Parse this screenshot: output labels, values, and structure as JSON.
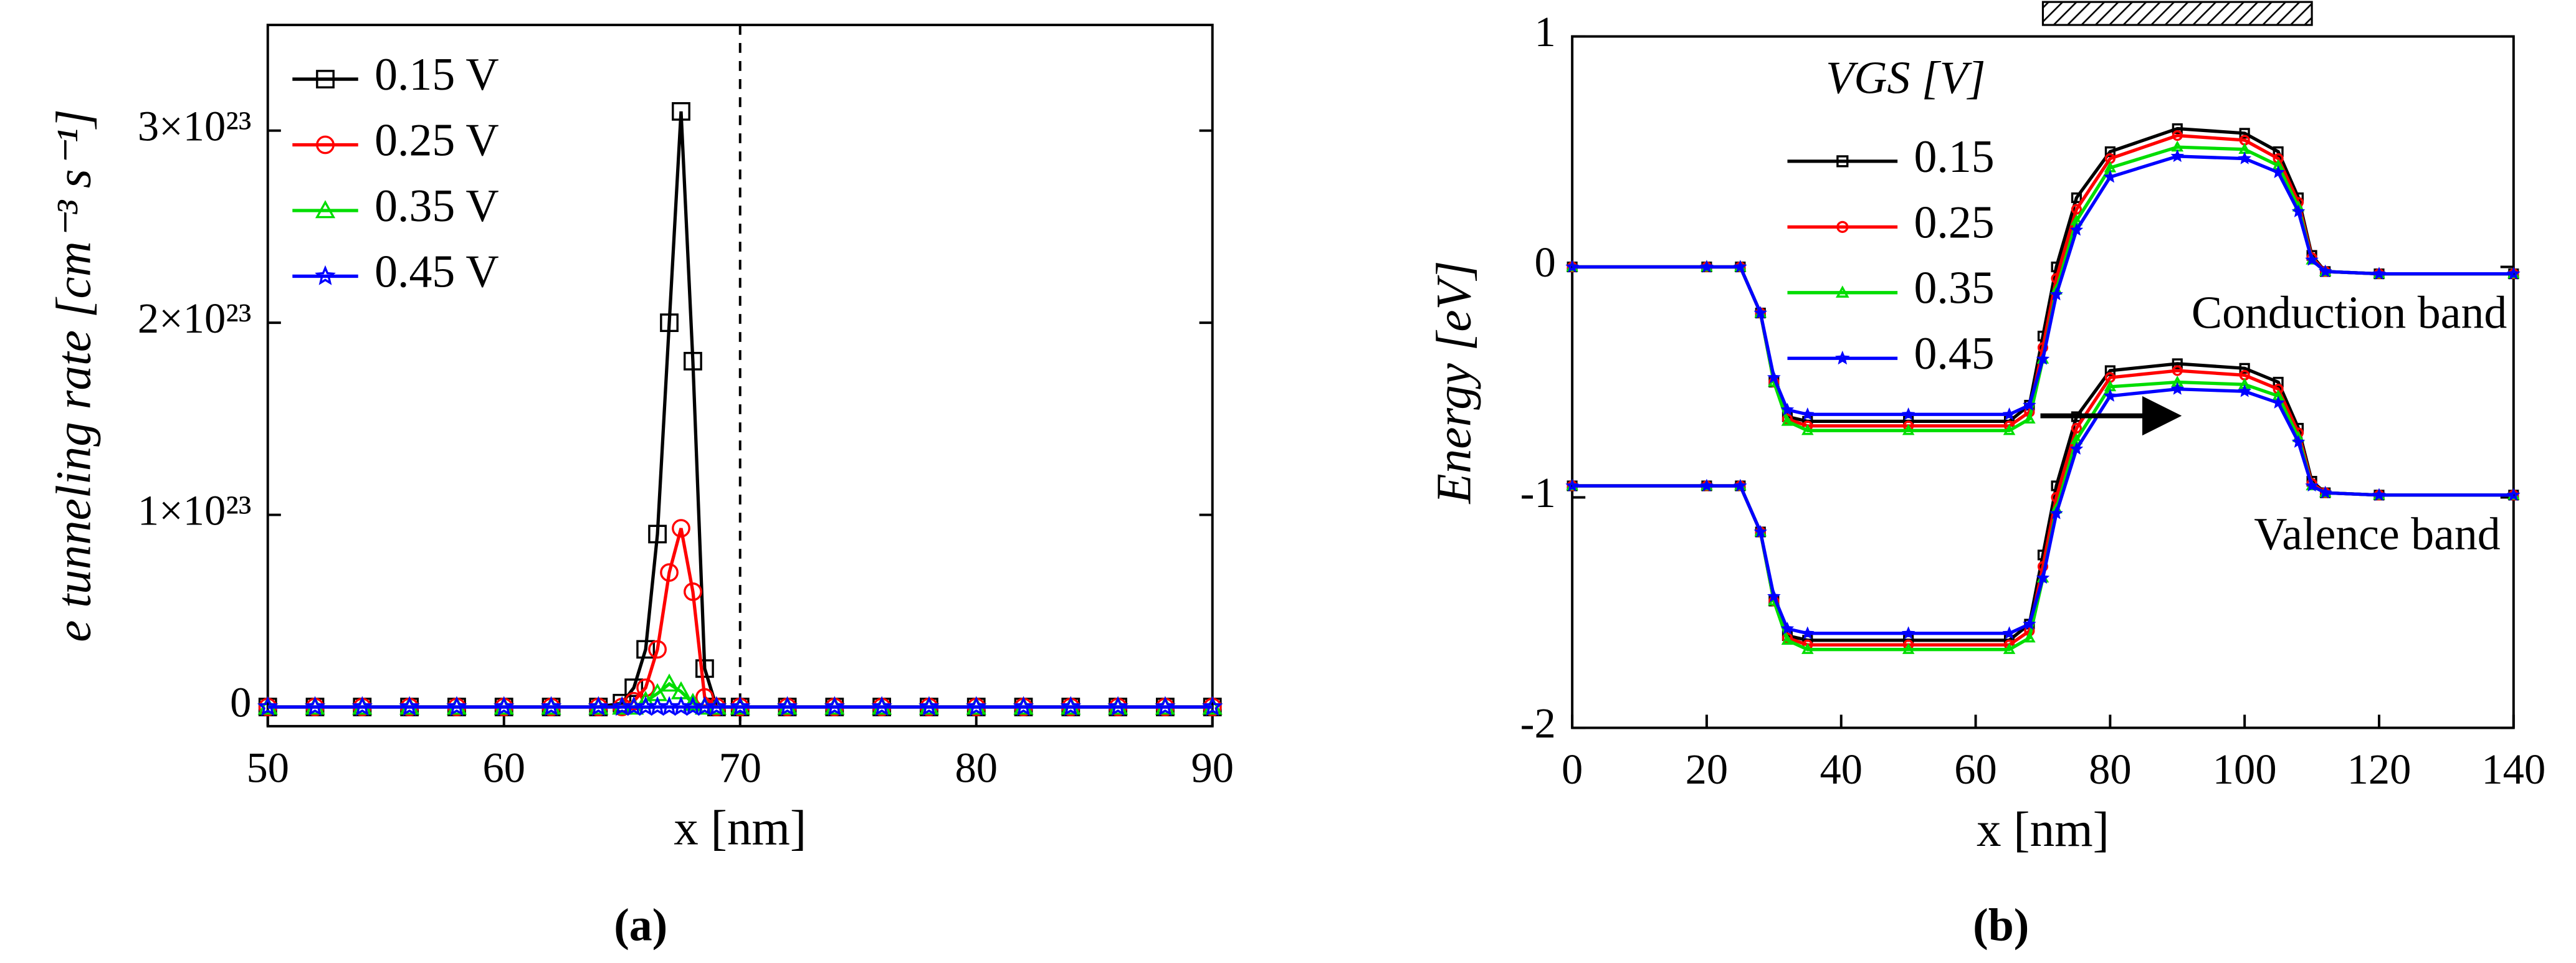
{
  "chart_data": [
    {
      "type": "line",
      "caption": "(a)",
      "xlabel": "x [nm]",
      "ylabel": "e tunneling rate [cm⁻³ s⁻¹]",
      "x": [
        50,
        52,
        54,
        56,
        58,
        60,
        62,
        64,
        65,
        65.5,
        66,
        66.5,
        67,
        67.5,
        68,
        68.5,
        69,
        70,
        72,
        74,
        76,
        78,
        80,
        82,
        84,
        86,
        88,
        90
      ],
      "series": [
        {
          "name": "0.15 V",
          "color": "#000000",
          "marker": "square",
          "values": [
            0,
            0,
            0,
            0,
            0,
            0,
            0,
            0,
            2e+21,
            1e+22,
            3e+22,
            9e+22,
            2e+23,
            3.1e+23,
            1.8e+23,
            2e+22,
            0,
            0,
            0,
            0,
            0,
            0,
            0,
            0,
            0,
            0,
            0,
            0
          ]
        },
        {
          "name": "0.25 V",
          "color": "#ff0000",
          "marker": "circle",
          "values": [
            0,
            0,
            0,
            0,
            0,
            0,
            0,
            0,
            0,
            3e+21,
            1e+22,
            3e+22,
            7e+22,
            9.3e+22,
            6e+22,
            5e+21,
            0,
            0,
            0,
            0,
            0,
            0,
            0,
            0,
            0,
            0,
            0,
            0
          ]
        },
        {
          "name": "0.35 V",
          "color": "#00dd00",
          "marker": "triangle",
          "values": [
            0,
            0,
            0,
            0,
            0,
            0,
            0,
            0,
            0,
            0,
            3e+21,
            7e+21,
            1.2e+22,
            8e+21,
            2e+21,
            0,
            0,
            0,
            0,
            0,
            0,
            0,
            0,
            0,
            0,
            0,
            0,
            0
          ]
        },
        {
          "name": "0.45 V",
          "color": "#0000ff",
          "marker": "star",
          "values": [
            0,
            0,
            0,
            0,
            0,
            0,
            0,
            0,
            0,
            0,
            0,
            0,
            0,
            0,
            0,
            0,
            0,
            0,
            0,
            0,
            0,
            0,
            0,
            0,
            0,
            0,
            0,
            0
          ]
        }
      ],
      "xlim": [
        50,
        90
      ],
      "xticks": [
        50,
        60,
        70,
        80,
        90
      ],
      "ylim": [
        -1e+22,
        3.55e+23
      ],
      "yticks": [
        0,
        {
          "value": 1e+23,
          "label": "1×10²³"
        },
        {
          "value": 2e+23,
          "label": "2×10²³"
        },
        {
          "value": 3e+23,
          "label": "3×10²³"
        }
      ],
      "vline_x": 70
    },
    {
      "type": "band",
      "caption": "(b)",
      "xlabel": "x [nm]",
      "ylabel": "Energy [eV]",
      "legend_title": "VGS [V]",
      "annotations": [
        "Conduction band",
        "Valence band"
      ],
      "x": [
        0,
        20,
        25,
        28,
        30,
        32,
        35,
        50,
        65,
        68,
        70,
        72,
        75,
        80,
        90,
        100,
        105,
        108,
        110,
        112,
        120,
        140
      ],
      "series": [
        {
          "name": "0.15",
          "color": "#000000",
          "marker": "square",
          "conduction": [
            0,
            0,
            0,
            -0.2,
            -0.5,
            -0.65,
            -0.67,
            -0.67,
            -0.67,
            -0.6,
            -0.3,
            0.0,
            0.3,
            0.5,
            0.6,
            0.58,
            0.5,
            0.3,
            0.05,
            -0.02,
            -0.03,
            -0.03
          ],
          "valence": [
            -0.95,
            -0.95,
            -0.95,
            -1.15,
            -1.45,
            -1.6,
            -1.62,
            -1.62,
            -1.62,
            -1.55,
            -1.25,
            -0.95,
            -0.65,
            -0.45,
            -0.42,
            -0.44,
            -0.5,
            -0.7,
            -0.93,
            -0.98,
            -0.99,
            -0.99
          ]
        },
        {
          "name": "0.25",
          "color": "#ff0000",
          "marker": "circle",
          "conduction": [
            0,
            0,
            0,
            -0.2,
            -0.5,
            -0.66,
            -0.69,
            -0.69,
            -0.69,
            -0.63,
            -0.35,
            -0.05,
            0.25,
            0.47,
            0.57,
            0.55,
            0.47,
            0.28,
            0.04,
            -0.02,
            -0.03,
            -0.03
          ],
          "valence": [
            -0.95,
            -0.95,
            -0.95,
            -1.15,
            -1.45,
            -1.61,
            -1.64,
            -1.64,
            -1.64,
            -1.58,
            -1.3,
            -1.0,
            -0.7,
            -0.48,
            -0.45,
            -0.47,
            -0.53,
            -0.72,
            -0.94,
            -0.98,
            -0.99,
            -0.99
          ]
        },
        {
          "name": "0.35",
          "color": "#00dd00",
          "marker": "triangle",
          "conduction": [
            0,
            0,
            0,
            -0.2,
            -0.5,
            -0.67,
            -0.71,
            -0.71,
            -0.71,
            -0.66,
            -0.4,
            -0.1,
            0.2,
            0.43,
            0.52,
            0.51,
            0.44,
            0.26,
            0.03,
            -0.02,
            -0.03,
            -0.03
          ],
          "valence": [
            -0.95,
            -0.95,
            -0.95,
            -1.15,
            -1.45,
            -1.62,
            -1.66,
            -1.66,
            -1.66,
            -1.61,
            -1.35,
            -1.05,
            -0.75,
            -0.52,
            -0.5,
            -0.51,
            -0.56,
            -0.74,
            -0.95,
            -0.98,
            -0.99,
            -0.99
          ]
        },
        {
          "name": "0.45",
          "color": "#0000ff",
          "marker": "star",
          "conduction": [
            0,
            0,
            0,
            -0.2,
            -0.48,
            -0.62,
            -0.64,
            -0.64,
            -0.64,
            -0.6,
            -0.4,
            -0.12,
            0.16,
            0.39,
            0.48,
            0.47,
            0.41,
            0.24,
            0.03,
            -0.02,
            -0.03,
            -0.03
          ],
          "valence": [
            -0.95,
            -0.95,
            -0.95,
            -1.15,
            -1.43,
            -1.57,
            -1.59,
            -1.59,
            -1.59,
            -1.55,
            -1.35,
            -1.07,
            -0.79,
            -0.56,
            -0.53,
            -0.54,
            -0.59,
            -0.76,
            -0.95,
            -0.98,
            -0.99,
            -0.99
          ]
        }
      ],
      "xlim": [
        0,
        140
      ],
      "xticks": [
        0,
        20,
        40,
        60,
        80,
        100,
        120,
        140
      ],
      "ylim": [
        -2,
        1
      ],
      "yticks": [
        -2,
        -1,
        0,
        1
      ],
      "gate_x": [
        70,
        110
      ]
    }
  ]
}
